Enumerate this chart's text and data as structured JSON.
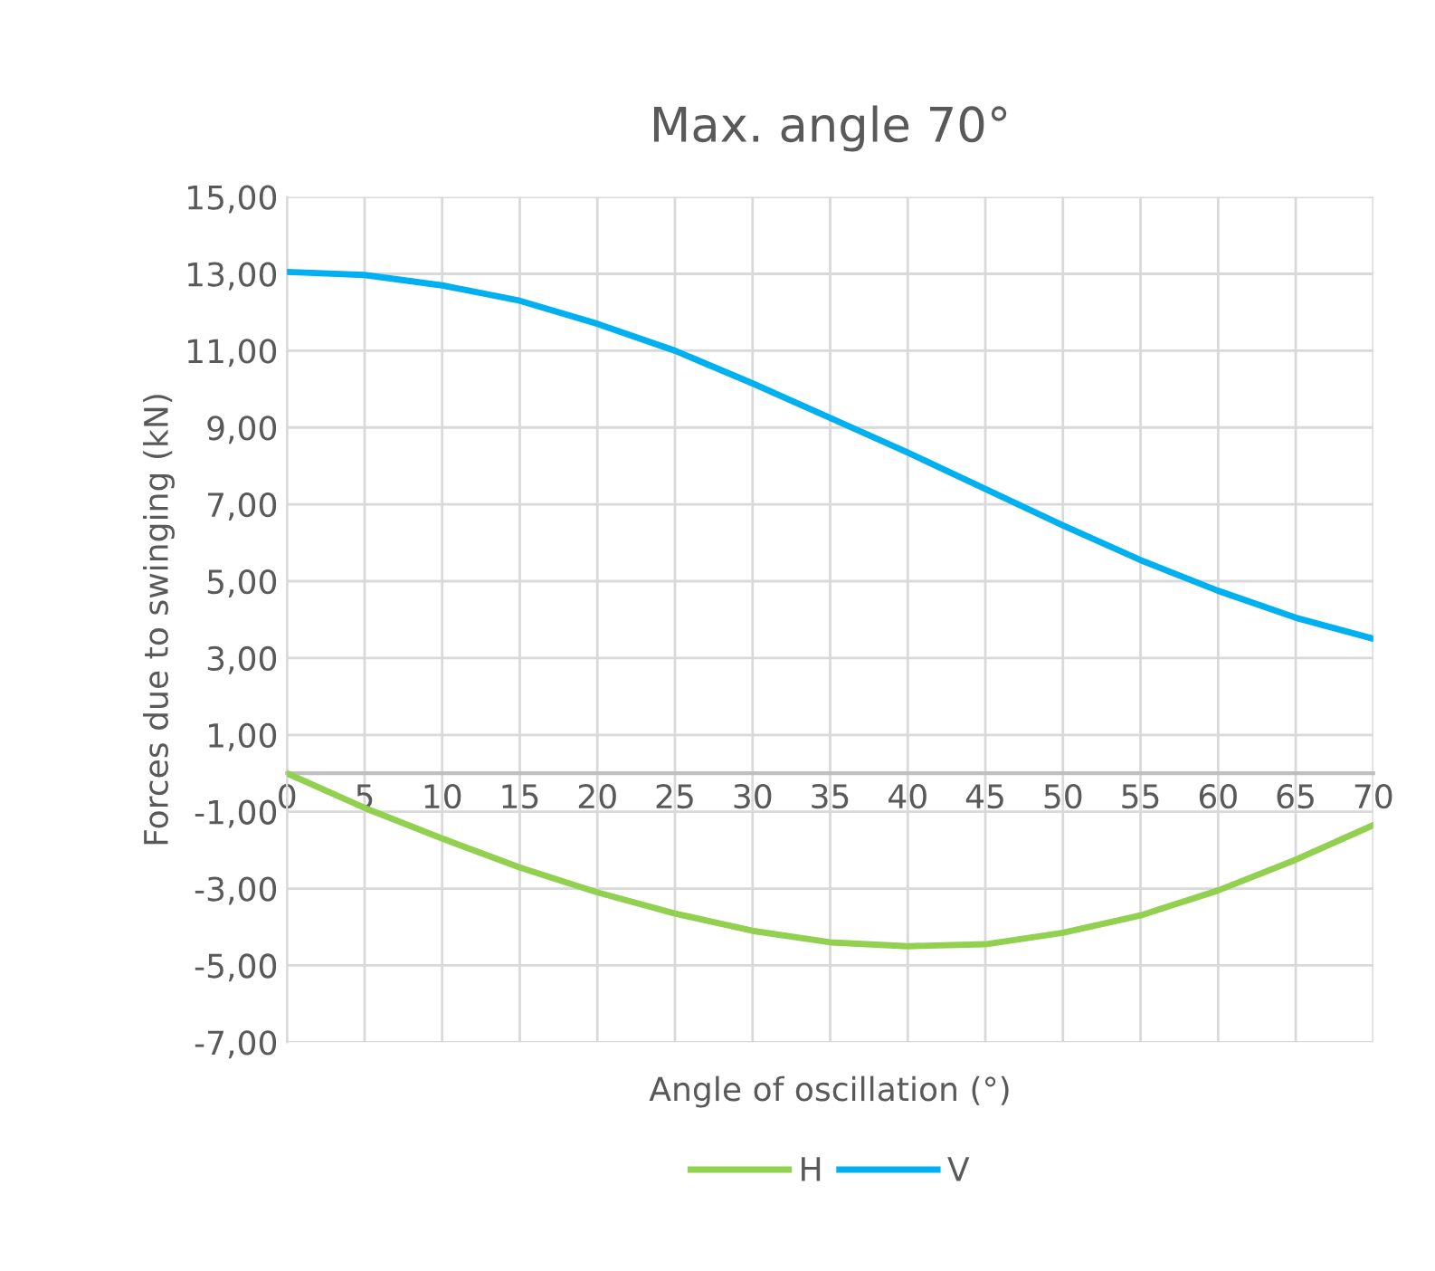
{
  "chart_data": {
    "type": "line",
    "title": "Max. angle 70°",
    "xlabel": "Angle of oscillation (°)",
    "ylabel": "Forces due to swinging (kN)",
    "x": [
      0,
      5,
      10,
      15,
      20,
      25,
      30,
      35,
      40,
      45,
      50,
      55,
      60,
      65,
      70
    ],
    "series": [
      {
        "name": "H",
        "color": "#92d050",
        "values": [
          0,
          -0.9,
          -1.7,
          -2.45,
          -3.1,
          -3.65,
          -4.1,
          -4.4,
          -4.5,
          -4.45,
          -4.15,
          -3.7,
          -3.05,
          -2.25,
          -1.35
        ]
      },
      {
        "name": "V",
        "color": "#00b0f0",
        "values": [
          13.05,
          12.97,
          12.7,
          12.3,
          11.7,
          11.0,
          10.15,
          9.25,
          8.35,
          7.4,
          6.45,
          5.55,
          4.75,
          4.05,
          3.5
        ]
      }
    ],
    "xlim": [
      0,
      70
    ],
    "xticks": [
      0,
      5,
      10,
      15,
      20,
      25,
      30,
      35,
      40,
      45,
      50,
      55,
      60,
      65,
      70
    ],
    "ylim": [
      -7,
      15
    ],
    "yticks": [
      {
        "value": -7,
        "label": "-7,00"
      },
      {
        "value": -5,
        "label": "-5,00"
      },
      {
        "value": -3,
        "label": "-3,00"
      },
      {
        "value": -1,
        "label": "-1,00"
      },
      {
        "value": 1,
        "label": "1,00"
      },
      {
        "value": 3,
        "label": "3,00"
      },
      {
        "value": 5,
        "label": "5,00"
      },
      {
        "value": 7,
        "label": "7,00"
      },
      {
        "value": 9,
        "label": "9,00"
      },
      {
        "value": 11,
        "label": "11,00"
      },
      {
        "value": 13,
        "label": "13,00"
      },
      {
        "value": 15,
        "label": "15,00"
      }
    ],
    "grid": true,
    "legend": "bottom",
    "marker": "none",
    "line_style": "solid"
  }
}
